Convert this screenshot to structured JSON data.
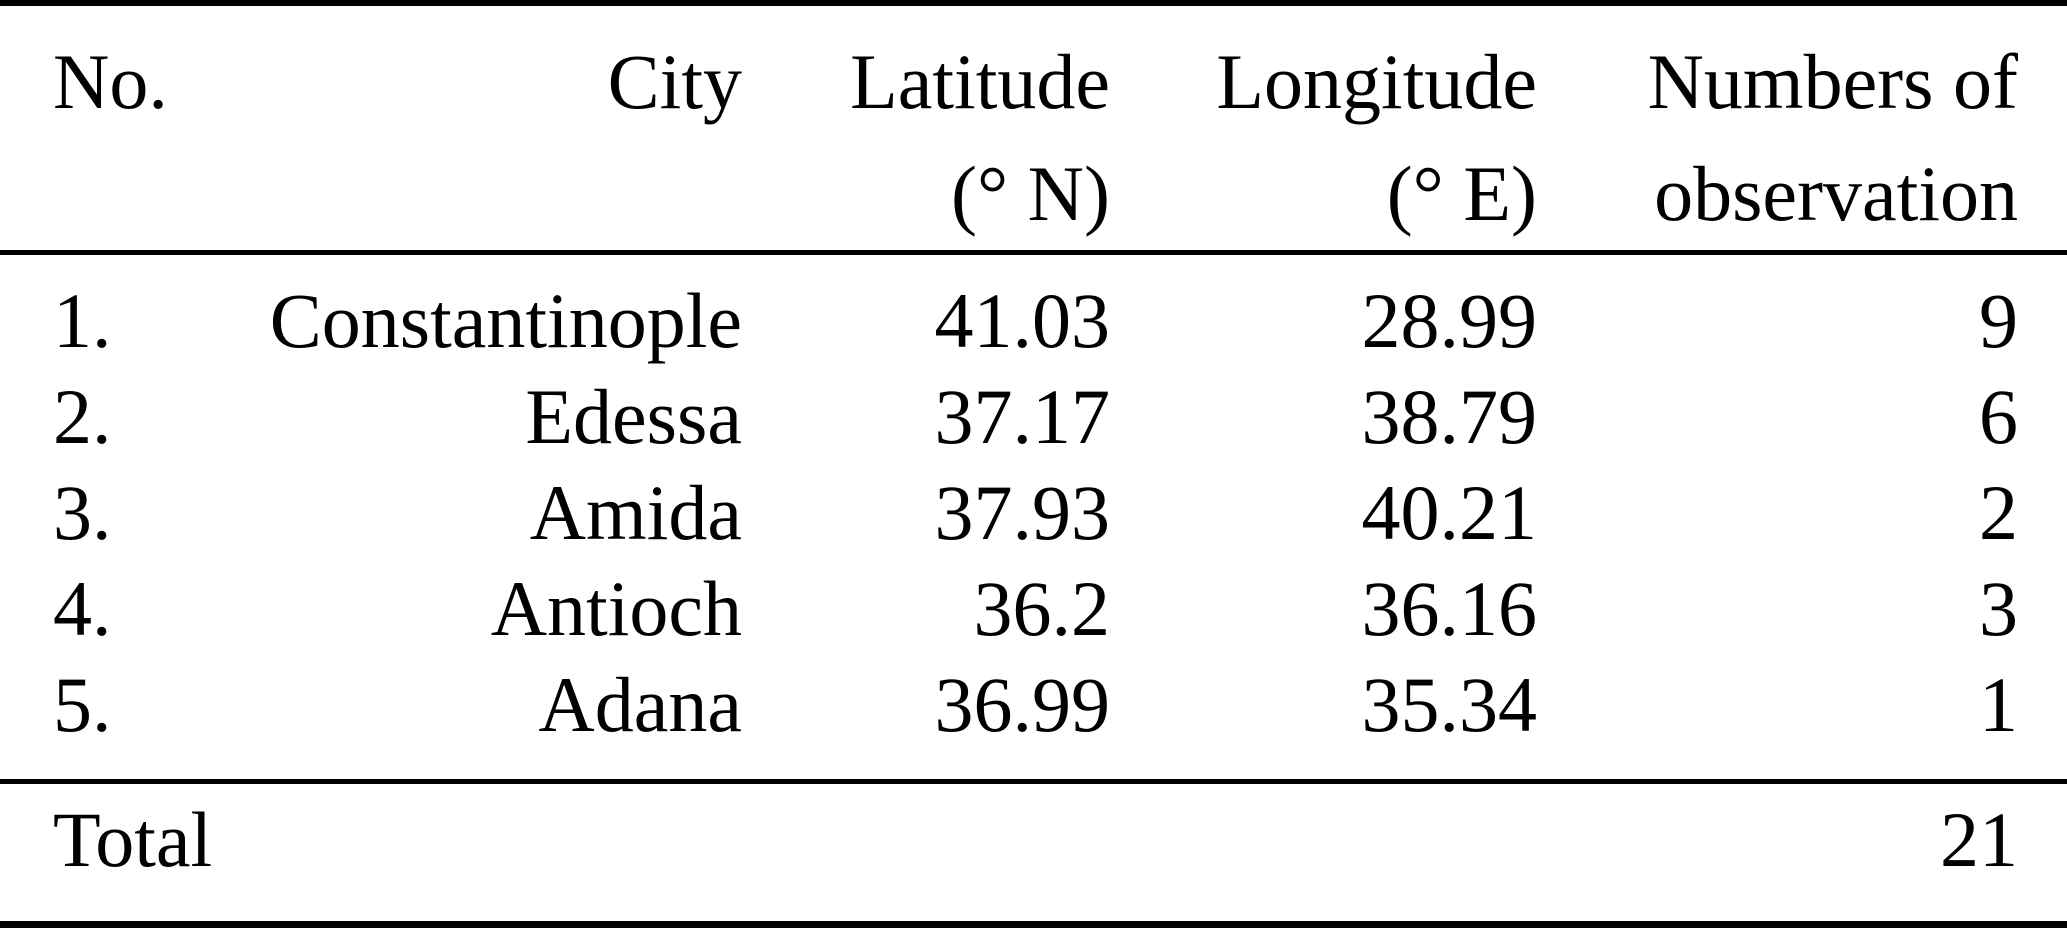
{
  "page": {
    "background": "#ffffff",
    "text_color": "#000000",
    "rule_color": "#000000"
  },
  "table": {
    "header": {
      "no": "No.",
      "city": "City",
      "latitude_line1": "Latitude",
      "latitude_line2": "(° N)",
      "longitude_line1": "Longitude",
      "longitude_line2": "(° E)",
      "observations_line1": "Numbers of",
      "observations_line2": "observation"
    },
    "rows": [
      {
        "no": "1.",
        "city": "Constantinople",
        "latitude": "41.03",
        "longitude": "28.99",
        "observations": "9"
      },
      {
        "no": "2.",
        "city": "Edessa",
        "latitude": "37.17",
        "longitude": "38.79",
        "observations": "6"
      },
      {
        "no": "3.",
        "city": "Amida",
        "latitude": "37.93",
        "longitude": "40.21",
        "observations": "2"
      },
      {
        "no": "4.",
        "city": "Antioch",
        "latitude": "36.2",
        "longitude": "36.16",
        "observations": "3"
      },
      {
        "no": "5.",
        "city": "Adana",
        "latitude": "36.99",
        "longitude": "35.34",
        "observations": "1"
      }
    ],
    "footer": {
      "label": "Total",
      "value": "21"
    }
  }
}
